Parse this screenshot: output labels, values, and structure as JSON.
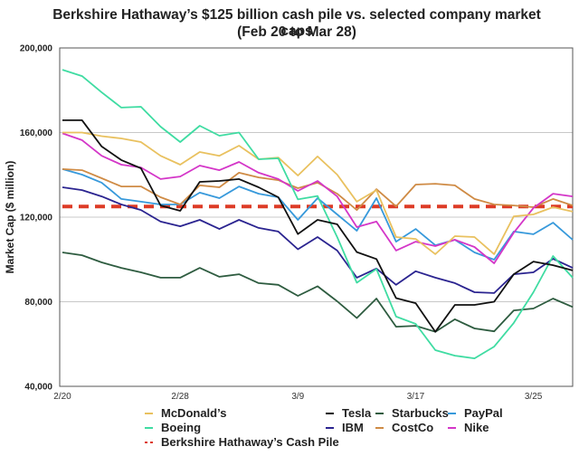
{
  "chart_data": {
    "type": "line",
    "title": "Berkshire Hathaway’s $125 billion cash pile vs. selected company market caps",
    "subtitle": "(Feb 20 to Mar 28)",
    "xlabel": "",
    "ylabel": "Market Cap ($ million)",
    "ylim": [
      40000,
      200000
    ],
    "yticks": [
      40000,
      80000,
      120000,
      160000,
      200000
    ],
    "ytick_labels": [
      "40,000",
      "80,000",
      "120,000",
      "160,000",
      "200,000"
    ],
    "x": [
      "2/20",
      "2/21",
      "2/24",
      "2/25",
      "2/26",
      "2/27",
      "2/28",
      "3/2",
      "3/3",
      "3/4",
      "3/5",
      "3/6",
      "3/9",
      "3/10",
      "3/11",
      "3/12",
      "3/13",
      "3/16",
      "3/17",
      "3/18",
      "3/19",
      "3/20",
      "3/23",
      "3/24",
      "3/25",
      "3/26",
      "3/27"
    ],
    "xtick_labels": [
      {
        "index": 0,
        "label": "2/20"
      },
      {
        "index": 6,
        "label": "2/28"
      },
      {
        "index": 12,
        "label": "3/9"
      },
      {
        "index": 18,
        "label": "3/17"
      },
      {
        "index": 24,
        "label": "3/25"
      }
    ],
    "grid": "horizontal",
    "legend_position": "bottom",
    "series": [
      {
        "name": "McDonald’s",
        "color": "#e9c15f",
        "style": "solid",
        "values": [
          160000,
          160000,
          158300,
          157200,
          155500,
          149000,
          144800,
          150800,
          149000,
          153800,
          147400,
          148200,
          139700,
          148700,
          140100,
          127300,
          132800,
          110600,
          109700,
          102500,
          111000,
          110600,
          102500,
          120400,
          121300,
          124700,
          122600
        ]
      },
      {
        "name": "Boeing",
        "color": "#3fdca2",
        "style": "solid",
        "values": [
          189700,
          186700,
          179000,
          171800,
          172200,
          162800,
          155500,
          163200,
          158500,
          160000,
          147400,
          147800,
          128400,
          130000,
          110600,
          89000,
          95500,
          73000,
          69500,
          57100,
          54500,
          53200,
          58800,
          70000,
          84500,
          101600,
          91400
        ]
      },
      {
        "name": "Berkshire Hathaway’s Cash Pile",
        "color": "#dd3b26",
        "style": "dashed",
        "values": [
          125000,
          125000,
          125000,
          125000,
          125000,
          125000,
          125000,
          125000,
          125000,
          125000,
          125000,
          125000,
          125000,
          125000,
          125000,
          125000,
          125000,
          125000,
          125000,
          125000,
          125000,
          125000,
          125000,
          125000,
          125000,
          125000,
          125000
        ]
      },
      {
        "name": "Tesla",
        "color": "#111111",
        "style": "solid",
        "values": [
          165800,
          165800,
          153400,
          147000,
          143100,
          125500,
          123000,
          136700,
          137100,
          138000,
          134100,
          129400,
          112000,
          118700,
          116600,
          103500,
          100200,
          81700,
          79300,
          65800,
          78500,
          78500,
          80000,
          93000,
          99000,
          97300,
          94800
        ]
      },
      {
        "name": "IBM",
        "color": "#2b2490",
        "style": "solid",
        "values": [
          134100,
          132800,
          129800,
          126000,
          123400,
          117900,
          115700,
          118700,
          114400,
          118700,
          114900,
          113200,
          104800,
          110600,
          104200,
          91400,
          95700,
          88000,
          94400,
          91400,
          88800,
          84500,
          84100,
          93000,
          93900,
          100300,
          96000
        ]
      },
      {
        "name": "Starbucks",
        "color": "#2e5c40",
        "style": "solid",
        "values": [
          103300,
          102000,
          98600,
          96000,
          93900,
          91400,
          91400,
          96000,
          91800,
          93000,
          88800,
          88000,
          82800,
          87300,
          80200,
          72300,
          81500,
          68200,
          68600,
          65800,
          71700,
          67400,
          66000,
          75900,
          76800,
          81500,
          77500
        ]
      },
      {
        "name": "CostCo",
        "color": "#cf8b45",
        "style": "solid",
        "values": [
          142700,
          142200,
          138400,
          134500,
          134500,
          129400,
          126000,
          135000,
          134100,
          141000,
          138800,
          137500,
          133700,
          136300,
          131100,
          123400,
          133200,
          125100,
          135400,
          135800,
          135000,
          128600,
          126000,
          125500,
          124700,
          128600,
          125500
        ]
      },
      {
        "name": "PayPal",
        "color": "#3799db",
        "style": "solid",
        "values": [
          142700,
          140100,
          136300,
          128600,
          127300,
          126000,
          126000,
          131600,
          129000,
          134500,
          131100,
          129400,
          118700,
          129000,
          121300,
          113600,
          129000,
          108400,
          114400,
          106700,
          109300,
          103300,
          99900,
          113200,
          111900,
          117400,
          109300
        ]
      },
      {
        "name": "Nike",
        "color": "#d436c8",
        "style": "solid",
        "values": [
          159600,
          156400,
          149000,
          144800,
          143500,
          138000,
          139200,
          144400,
          142200,
          146100,
          141000,
          138000,
          132400,
          137100,
          129800,
          115300,
          117900,
          104200,
          108400,
          106300,
          109300,
          105900,
          98200,
          112700,
          124300,
          131100,
          129800
        ]
      }
    ],
    "legend": [
      {
        "name": "McDonald’s",
        "color": "#e9c15f",
        "style": "solid"
      },
      {
        "name": "Tesla",
        "color": "#111111",
        "style": "solid"
      },
      {
        "name": "Starbucks",
        "color": "#2e5c40",
        "style": "solid"
      },
      {
        "name": "PayPal",
        "color": "#3799db",
        "style": "solid"
      },
      {
        "name": "Boeing",
        "color": "#3fdca2",
        "style": "solid"
      },
      {
        "name": "IBM",
        "color": "#2b2490",
        "style": "solid"
      },
      {
        "name": "CostCo",
        "color": "#cf8b45",
        "style": "solid"
      },
      {
        "name": "Nike",
        "color": "#d436c8",
        "style": "solid"
      },
      {
        "name": "Berkshire Hathaway’s Cash Pile",
        "color": "#dd3b26",
        "style": "dashed"
      }
    ]
  }
}
